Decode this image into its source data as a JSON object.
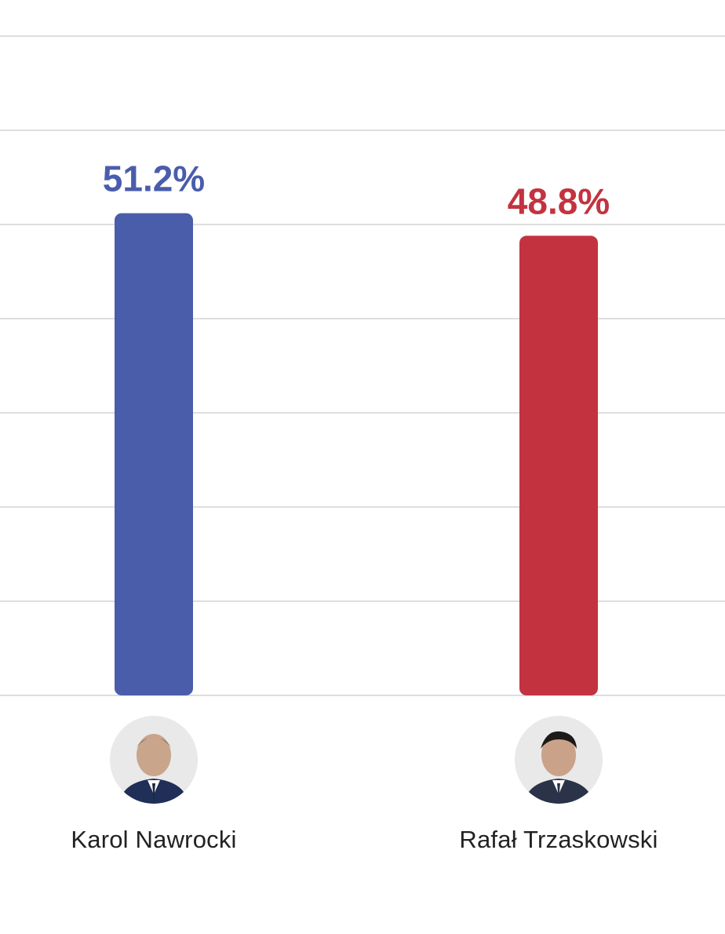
{
  "chart_data": {
    "type": "bar",
    "categories": [
      "Karol Nawrocki",
      "Rafał Trzaskowski"
    ],
    "values": [
      51.2,
      48.8
    ],
    "value_labels": [
      "51.2%",
      "48.8%"
    ],
    "colors": [
      "#4a5dab",
      "#c3333f"
    ],
    "ylim": [
      0,
      70
    ],
    "grid": true
  },
  "candidates": [
    {
      "name": "Karol Nawrocki",
      "avatar_icon": "candidate-photo-icon"
    },
    {
      "name": "Rafał Trzaskowski",
      "avatar_icon": "candidate-photo-icon"
    }
  ]
}
